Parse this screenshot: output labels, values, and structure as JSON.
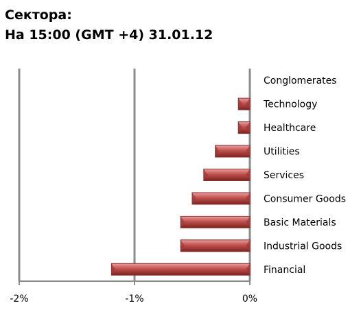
{
  "title_line1": "Сектора:",
  "title_line2": "На 15:00 (GMT +4) 31.01.12",
  "chart_data": {
    "type": "bar",
    "orientation": "horizontal",
    "categories": [
      "Conglomerates",
      "Technology",
      "Healthcare",
      "Utilities",
      "Services",
      "Consumer Goods",
      "Basic Materials",
      "Industrial Goods",
      "Financial"
    ],
    "values": [
      0.0,
      -0.1,
      -0.1,
      -0.3,
      -0.4,
      -0.5,
      -0.6,
      -0.6,
      -1.2
    ],
    "xlim": [
      -2,
      0
    ],
    "xticks": [
      "-2%",
      "-1%",
      "0%"
    ],
    "xtick_values": [
      -2,
      -1,
      0
    ],
    "grid": "vertical",
    "bar_color": "#c0504d"
  }
}
